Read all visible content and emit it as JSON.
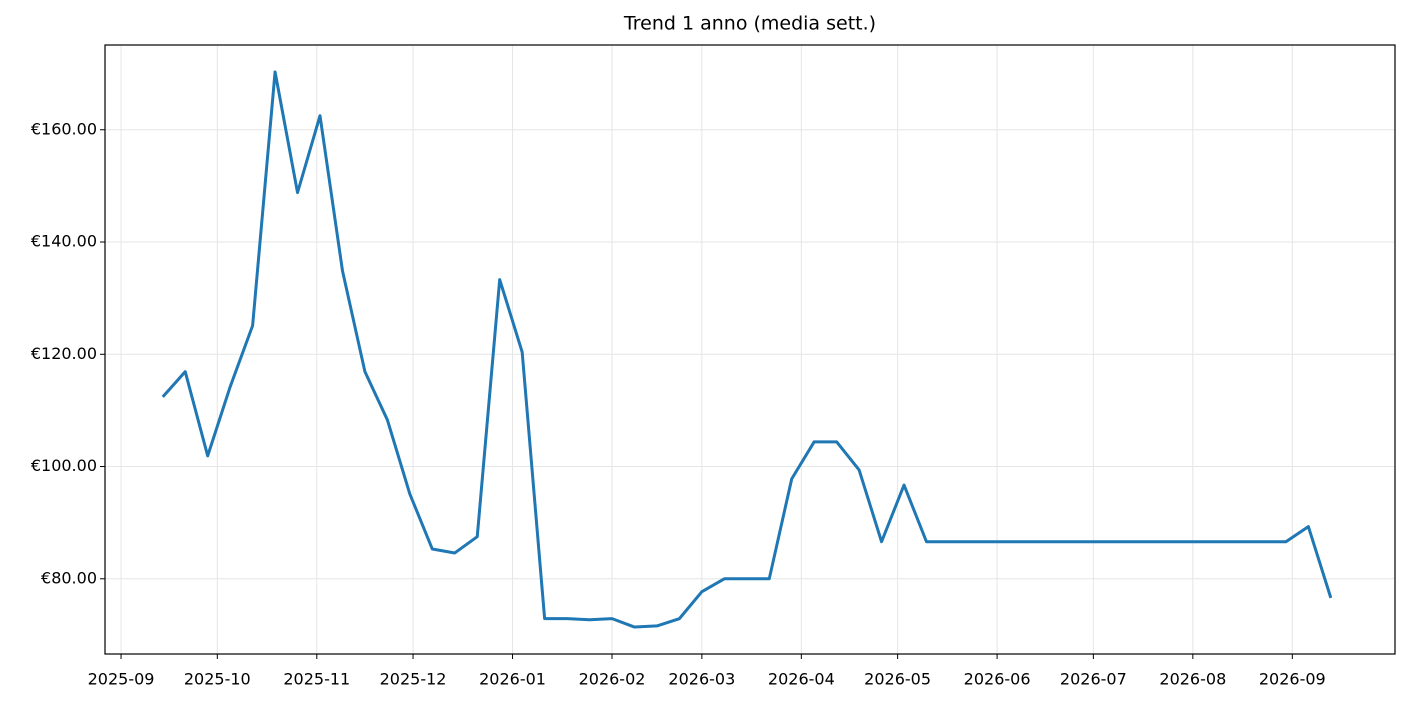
{
  "chart_data": {
    "type": "line",
    "title": "Trend 1 anno (media sett.)",
    "x": [
      20345,
      20352,
      20359,
      20366,
      20373,
      20380,
      20387,
      20394,
      20401,
      20408,
      20415,
      20422,
      20429,
      20436,
      20443,
      20450,
      20457,
      20464,
      20471,
      20478,
      20485,
      20492,
      20499,
      20506,
      20513,
      20520,
      20527,
      20534,
      20541,
      20548,
      20555,
      20562,
      20569,
      20576,
      20583,
      20590,
      20597,
      20604,
      20611,
      20618,
      20625,
      20632,
      20639,
      20646,
      20653,
      20660,
      20667,
      20674,
      20681,
      20688,
      20695,
      20702,
      20709
    ],
    "series": [
      {
        "color": "#1f77b4",
        "values": [
          112.4,
          116.9,
          101.9,
          114.2,
          125.1,
          170.3,
          148.8,
          162.5,
          134.9,
          116.9,
          108.3,
          95.1,
          85.3,
          84.6,
          87.5,
          133.3,
          120.4,
          72.9,
          72.9,
          72.7,
          72.9,
          71.4,
          71.6,
          72.9,
          77.7,
          80.0,
          80.0,
          80.0,
          97.8,
          104.4,
          104.4,
          99.4,
          86.6,
          96.7,
          86.6,
          86.6,
          86.6,
          86.6,
          86.6,
          86.6,
          86.6,
          86.6,
          86.6,
          86.6,
          86.6,
          86.6,
          86.6,
          86.6,
          86.6,
          86.6,
          86.6,
          89.3,
          76.6
        ]
      }
    ],
    "xlim": [
      20327,
      20729
    ],
    "xticks": [
      {
        "value": 20332,
        "label": "2025-09"
      },
      {
        "value": 20362,
        "label": "2025-10"
      },
      {
        "value": 20393,
        "label": "2025-11"
      },
      {
        "value": 20423,
        "label": "2025-12"
      },
      {
        "value": 20454,
        "label": "2026-01"
      },
      {
        "value": 20485,
        "label": "2026-02"
      },
      {
        "value": 20513,
        "label": "2026-03"
      },
      {
        "value": 20544,
        "label": "2026-04"
      },
      {
        "value": 20574,
        "label": "2026-05"
      },
      {
        "value": 20605,
        "label": "2026-06"
      },
      {
        "value": 20635,
        "label": "2026-07"
      },
      {
        "value": 20666,
        "label": "2026-08"
      },
      {
        "value": 20697,
        "label": "2026-09"
      }
    ],
    "ylim": [
      66.6,
      175.1
    ],
    "yticks": [
      {
        "value": 80,
        "label": "€80.00"
      },
      {
        "value": 100,
        "label": "€100.00"
      },
      {
        "value": 120,
        "label": "€120.00"
      },
      {
        "value": 140,
        "label": "€140.00"
      },
      {
        "value": 160,
        "label": "€160.00"
      }
    ],
    "grid": true
  }
}
